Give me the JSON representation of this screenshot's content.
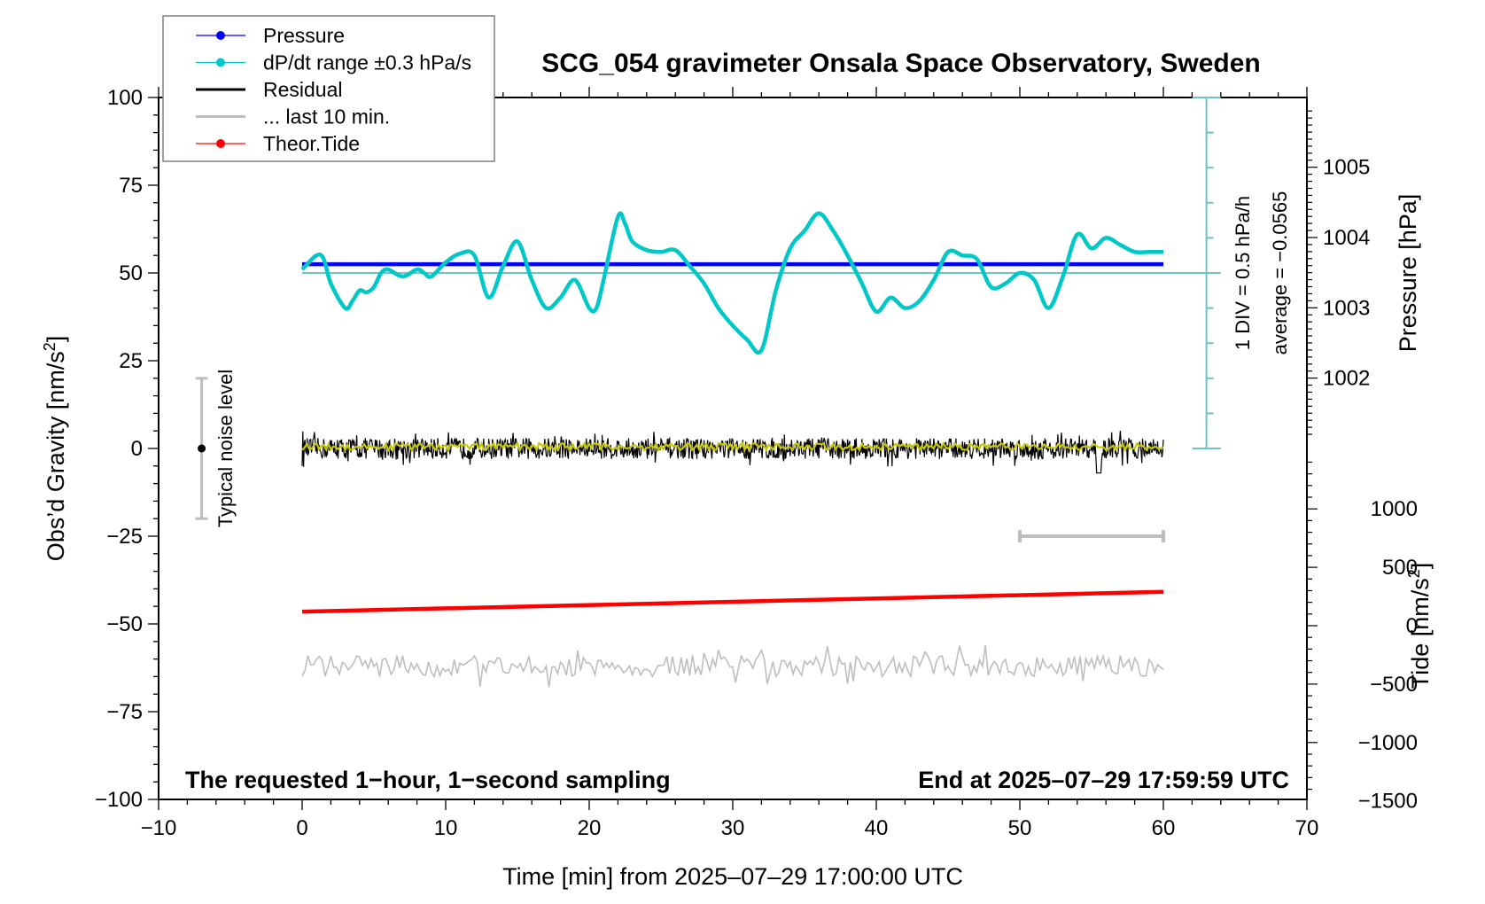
{
  "chart_data": {
    "type": "line",
    "title": "SCG_054 gravimeter Onsala Space Observatory, Sweden",
    "xlabel": "Time [min] from 2025–07–29 17:00:00 UTC",
    "ylabel_left": "Obs'd Gravity [nm/s²]",
    "ylabel_right_pressure": "Pressure [hPa]",
    "ylabel_right_tide": "Tide [nm/s²]",
    "xlim": [
      -10,
      70
    ],
    "ylim": [
      -100,
      100
    ],
    "x_ticks": [
      -10,
      0,
      10,
      20,
      30,
      40,
      50,
      60,
      70
    ],
    "x_tick_labels": [
      "−10",
      "0",
      "10",
      "20",
      "30",
      "40",
      "50",
      "60",
      "70"
    ],
    "y_ticks": [
      100,
      75,
      50,
      25,
      0,
      -25,
      -50,
      -75,
      -100
    ],
    "y_tick_labels": [
      "100",
      "75",
      "50",
      "25",
      "0",
      "−25",
      "−50",
      "−75",
      "−100"
    ],
    "pressure_ticks": [
      1005,
      1004,
      1003,
      1002
    ],
    "pressure_tick_labels": [
      "1005",
      "1004",
      "1003",
      "1002"
    ],
    "tide_ticks": [
      1000,
      500,
      0,
      -500,
      -1000,
      -1500
    ],
    "tide_tick_labels": [
      "1000",
      "500",
      "0",
      "−500",
      "−1000",
      "−1500"
    ],
    "bottom_left_note": "The requested 1−hour, 1−second sampling",
    "bottom_right_note": "End at 2025–07–29 17:59:59 UTC",
    "noise_label": "Typical noise level",
    "noise_level": {
      "x": -7,
      "center": 0,
      "half_range": 20
    },
    "dpdt_scale_label": "1 DIV = 0.5 hPa/h",
    "dpdt_average_label": "average = −0.0565",
    "dpdt_axis": {
      "x": 63,
      "center_gravity_units": 50,
      "div_hpa_per_h": 0.5,
      "divs_each_side": 5
    },
    "last10_marker": {
      "x_start": 50,
      "x_end": 60,
      "y": -25
    },
    "legend": [
      {
        "label": "Pressure",
        "color": "#0000ff",
        "style": "line-dot"
      },
      {
        "label": "dP/dt range ±0.3 hPa/s",
        "color": "#00c8c8",
        "style": "line-dot"
      },
      {
        "label": "Residual",
        "color": "#000000",
        "style": "line"
      },
      {
        "label": "... last 10 min.",
        "color": "#bebebe",
        "style": "line"
      },
      {
        "label": "Theor.Tide",
        "color": "#ff0000",
        "style": "line-dot"
      }
    ],
    "legend_position": "top-left",
    "series": [
      {
        "name": "Pressure",
        "axis": "pressure",
        "color": "#0000ff",
        "x": [
          0,
          60
        ],
        "values": [
          1003.62,
          1003.62
        ]
      },
      {
        "name": "dP/dt",
        "axis": "left",
        "color": "#00c8c8",
        "baseline": 50,
        "x": [
          0,
          1,
          1.5,
          2,
          3,
          3.5,
          4,
          4.5,
          5,
          5.5,
          6,
          7,
          8,
          8.5,
          9,
          10,
          11,
          12,
          13,
          14,
          15,
          16,
          17,
          18,
          19,
          20,
          20.5,
          21,
          22,
          22.5,
          23,
          24,
          25,
          26,
          27,
          28,
          29,
          30,
          31,
          32,
          33,
          34,
          35,
          36,
          37,
          38,
          39,
          40,
          41,
          42,
          43,
          44,
          45,
          46,
          47,
          48,
          49,
          50,
          51,
          52,
          53,
          54,
          55,
          56,
          57,
          58,
          59,
          60
        ],
        "values": [
          51,
          55,
          54,
          47,
          40,
          42,
          45,
          44.5,
          46,
          50,
          51,
          49,
          51,
          50,
          49,
          53,
          55.5,
          55,
          43,
          52,
          59,
          48,
          40,
          43,
          48,
          40,
          40,
          48,
          66,
          64,
          59,
          56.5,
          56,
          56.5,
          52,
          47,
          40,
          35,
          31,
          28,
          45,
          57,
          62,
          67,
          62,
          55,
          47,
          39,
          43,
          40,
          42,
          48,
          56,
          55,
          54,
          46,
          47,
          50,
          48,
          40,
          49,
          61,
          57,
          60,
          58,
          56,
          56,
          56
        ]
      },
      {
        "name": "Residual",
        "axis": "left",
        "color": "#000000",
        "x_range": [
          0,
          60
        ],
        "mean": 0,
        "amplitude": 3
      },
      {
        "name": "Residual smoothed",
        "axis": "left",
        "color": "#c8c800",
        "x_range": [
          0,
          60
        ],
        "mean": 0.5,
        "amplitude": 1
      },
      {
        "name": "... last 10 min.",
        "axis": "left",
        "color": "#bebebe",
        "x_range": [
          0,
          60
        ],
        "mean": -62,
        "amplitude": 3
      },
      {
        "name": "Theor.Tide",
        "axis": "tide",
        "color": "#ff0000",
        "x": [
          0,
          60
        ],
        "values": [
          120,
          290
        ]
      }
    ]
  }
}
